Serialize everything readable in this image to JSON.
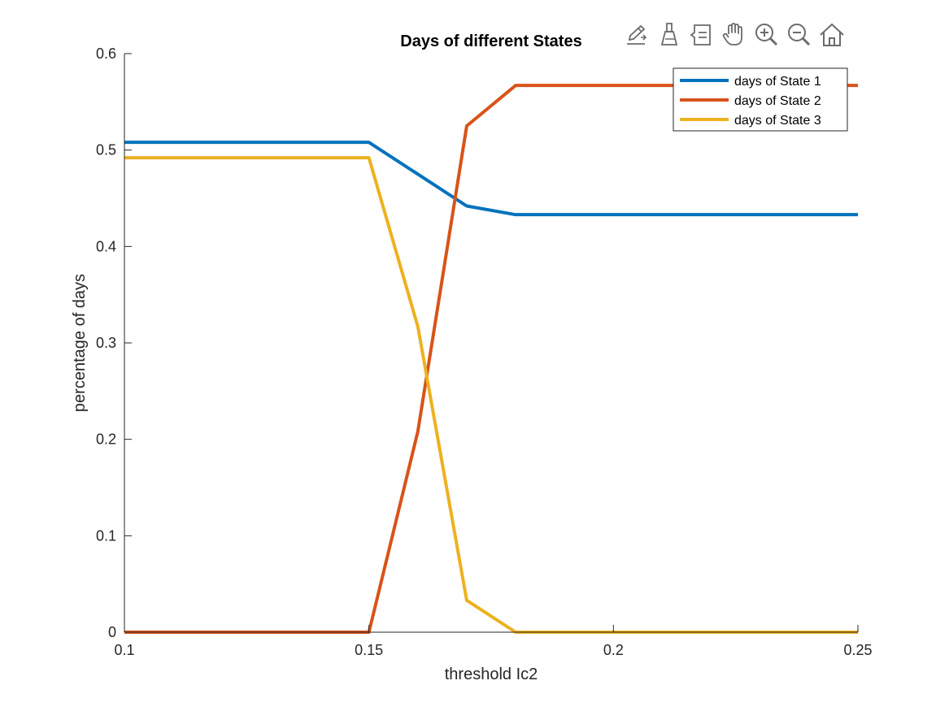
{
  "toolbar": {
    "buttons": [
      {
        "name": "edit-plot-icon"
      },
      {
        "name": "brush-icon"
      },
      {
        "name": "data-tips-icon"
      },
      {
        "name": "pan-icon"
      },
      {
        "name": "zoom-in-icon"
      },
      {
        "name": "zoom-out-icon"
      },
      {
        "name": "home-icon"
      }
    ]
  },
  "chart_data": {
    "type": "line",
    "title": "Days of different States",
    "xlabel": "threshold Ic2",
    "ylabel": "percentage of days",
    "xlim": [
      0.1,
      0.25
    ],
    "ylim": [
      0,
      0.6
    ],
    "xticks": [
      0.1,
      0.15,
      0.2,
      0.25
    ],
    "xtick_labels": [
      "0.1",
      "0.15",
      "0.2",
      "0.25"
    ],
    "yticks": [
      0,
      0.1,
      0.2,
      0.3,
      0.4,
      0.5,
      0.6
    ],
    "ytick_labels": [
      "0",
      "0.1",
      "0.2",
      "0.3",
      "0.4",
      "0.5",
      "0.6"
    ],
    "grid": false,
    "legend_position": "top-right",
    "x": [
      0.1,
      0.11,
      0.12,
      0.13,
      0.14,
      0.15,
      0.16,
      0.17,
      0.18,
      0.19,
      0.2,
      0.21,
      0.22,
      0.23,
      0.24,
      0.25
    ],
    "series": [
      {
        "name": "days of State 1",
        "color": "#0072BD",
        "values": [
          0.508,
          0.508,
          0.508,
          0.508,
          0.508,
          0.508,
          0.475,
          0.442,
          0.433,
          0.433,
          0.433,
          0.433,
          0.433,
          0.433,
          0.433,
          0.433
        ]
      },
      {
        "name": "days of State 2",
        "color": "#D95319",
        "values": [
          0,
          0,
          0,
          0,
          0,
          0,
          0.208,
          0.525,
          0.567,
          0.567,
          0.567,
          0.567,
          0.567,
          0.567,
          0.567,
          0.567
        ]
      },
      {
        "name": "days of State 3",
        "color": "#EDB120",
        "values": [
          0.492,
          0.492,
          0.492,
          0.492,
          0.492,
          0.492,
          0.317,
          0.033,
          0,
          0,
          0,
          0,
          0,
          0,
          0,
          0
        ]
      }
    ]
  }
}
